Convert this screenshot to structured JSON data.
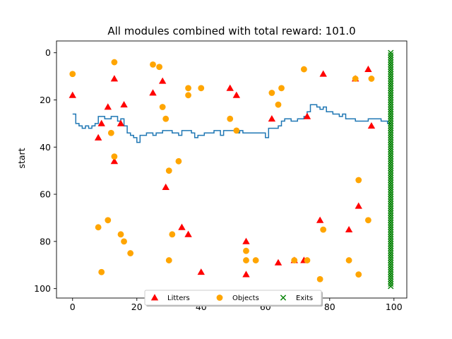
{
  "chart_data": {
    "type": "scatter",
    "title": "All modules combined with total reward: 101.0",
    "xlabel": "",
    "ylabel": "start",
    "xlim": [
      -5,
      104
    ],
    "ylim": [
      104,
      -5
    ],
    "y_inverted": true,
    "xticks": [
      0,
      20,
      40,
      60,
      80,
      100
    ],
    "yticks": [
      0,
      20,
      40,
      60,
      80,
      100
    ],
    "grid": false,
    "legend_position": "bottom-center",
    "series": [
      {
        "name": "Litters",
        "marker": "triangle",
        "color": "#ff0000",
        "points": [
          [
            0,
            18
          ],
          [
            8,
            36
          ],
          [
            9,
            30
          ],
          [
            11,
            23
          ],
          [
            13,
            11
          ],
          [
            13,
            46
          ],
          [
            15,
            30
          ],
          [
            16,
            22
          ],
          [
            25,
            17
          ],
          [
            28,
            12
          ],
          [
            29,
            57
          ],
          [
            34,
            74
          ],
          [
            36,
            77
          ],
          [
            40,
            93
          ],
          [
            49,
            15
          ],
          [
            51,
            18
          ],
          [
            54,
            80
          ],
          [
            54,
            94
          ],
          [
            62,
            28
          ],
          [
            64,
            89
          ],
          [
            69,
            88
          ],
          [
            72,
            88
          ],
          [
            73,
            27
          ],
          [
            77,
            71
          ],
          [
            78,
            9
          ],
          [
            86,
            75
          ],
          [
            88,
            11
          ],
          [
            89,
            65
          ],
          [
            92,
            7
          ],
          [
            93,
            31
          ]
        ]
      },
      {
        "name": "Objects",
        "marker": "circle",
        "color": "#ffa500",
        "points": [
          [
            0,
            9
          ],
          [
            8,
            74
          ],
          [
            9,
            93
          ],
          [
            11,
            71
          ],
          [
            12,
            34
          ],
          [
            13,
            4
          ],
          [
            13,
            44
          ],
          [
            15,
            77
          ],
          [
            16,
            80
          ],
          [
            18,
            85
          ],
          [
            25,
            5
          ],
          [
            27,
            6
          ],
          [
            28,
            23
          ],
          [
            29,
            28
          ],
          [
            30,
            50
          ],
          [
            30,
            88
          ],
          [
            31,
            77
          ],
          [
            33,
            46
          ],
          [
            36,
            15
          ],
          [
            36,
            18
          ],
          [
            40,
            15
          ],
          [
            49,
            28
          ],
          [
            51,
            33
          ],
          [
            54,
            84
          ],
          [
            54,
            88
          ],
          [
            57,
            88
          ],
          [
            62,
            17
          ],
          [
            64,
            22
          ],
          [
            65,
            15
          ],
          [
            69,
            88
          ],
          [
            72,
            7
          ],
          [
            73,
            88
          ],
          [
            77,
            96
          ],
          [
            78,
            75
          ],
          [
            86,
            88
          ],
          [
            88,
            11
          ],
          [
            89,
            54
          ],
          [
            89,
            94
          ],
          [
            92,
            71
          ],
          [
            93,
            11
          ]
        ]
      },
      {
        "name": "Exits",
        "marker": "x",
        "color": "#008000",
        "points": [
          [
            99,
            0
          ],
          [
            99,
            1
          ],
          [
            99,
            2
          ],
          [
            99,
            3
          ],
          [
            99,
            4
          ],
          [
            99,
            5
          ],
          [
            99,
            6
          ],
          [
            99,
            7
          ],
          [
            99,
            8
          ],
          [
            99,
            9
          ],
          [
            99,
            10
          ],
          [
            99,
            11
          ],
          [
            99,
            12
          ],
          [
            99,
            13
          ],
          [
            99,
            14
          ],
          [
            99,
            15
          ],
          [
            99,
            16
          ],
          [
            99,
            17
          ],
          [
            99,
            18
          ],
          [
            99,
            19
          ],
          [
            99,
            20
          ],
          [
            99,
            21
          ],
          [
            99,
            22
          ],
          [
            99,
            23
          ],
          [
            99,
            24
          ],
          [
            99,
            25
          ],
          [
            99,
            26
          ],
          [
            99,
            27
          ],
          [
            99,
            28
          ],
          [
            99,
            29
          ],
          [
            99,
            30
          ],
          [
            99,
            31
          ],
          [
            99,
            32
          ],
          [
            99,
            33
          ],
          [
            99,
            34
          ],
          [
            99,
            35
          ],
          [
            99,
            36
          ],
          [
            99,
            37
          ],
          [
            99,
            38
          ],
          [
            99,
            39
          ],
          [
            99,
            40
          ],
          [
            99,
            41
          ],
          [
            99,
            42
          ],
          [
            99,
            43
          ],
          [
            99,
            44
          ],
          [
            99,
            45
          ],
          [
            99,
            46
          ],
          [
            99,
            47
          ],
          [
            99,
            48
          ],
          [
            99,
            49
          ],
          [
            99,
            50
          ],
          [
            99,
            51
          ],
          [
            99,
            52
          ],
          [
            99,
            53
          ],
          [
            99,
            54
          ],
          [
            99,
            55
          ],
          [
            99,
            56
          ],
          [
            99,
            57
          ],
          [
            99,
            58
          ],
          [
            99,
            59
          ],
          [
            99,
            60
          ],
          [
            99,
            61
          ],
          [
            99,
            62
          ],
          [
            99,
            63
          ],
          [
            99,
            64
          ],
          [
            99,
            65
          ],
          [
            99,
            66
          ],
          [
            99,
            67
          ],
          [
            99,
            68
          ],
          [
            99,
            69
          ],
          [
            99,
            70
          ],
          [
            99,
            71
          ],
          [
            99,
            72
          ],
          [
            99,
            73
          ],
          [
            99,
            74
          ],
          [
            99,
            75
          ],
          [
            99,
            76
          ],
          [
            99,
            77
          ],
          [
            99,
            78
          ],
          [
            99,
            79
          ],
          [
            99,
            80
          ],
          [
            99,
            81
          ],
          [
            99,
            82
          ],
          [
            99,
            83
          ],
          [
            99,
            84
          ],
          [
            99,
            85
          ],
          [
            99,
            86
          ],
          [
            99,
            87
          ],
          [
            99,
            88
          ],
          [
            99,
            89
          ],
          [
            99,
            90
          ],
          [
            99,
            91
          ],
          [
            99,
            92
          ],
          [
            99,
            93
          ],
          [
            99,
            94
          ],
          [
            99,
            95
          ],
          [
            99,
            96
          ],
          [
            99,
            97
          ],
          [
            99,
            98
          ],
          [
            99,
            99
          ]
        ]
      }
    ],
    "path": {
      "color": "#1f77b4",
      "style": "step",
      "points": [
        [
          0,
          26
        ],
        [
          1,
          26
        ],
        [
          1,
          30
        ],
        [
          2,
          30
        ],
        [
          2,
          31
        ],
        [
          3,
          31
        ],
        [
          3,
          32
        ],
        [
          4,
          32
        ],
        [
          4,
          31
        ],
        [
          5,
          31
        ],
        [
          5,
          32
        ],
        [
          6,
          32
        ],
        [
          6,
          31
        ],
        [
          7,
          31
        ],
        [
          7,
          30
        ],
        [
          8,
          30
        ],
        [
          8,
          27
        ],
        [
          10,
          27
        ],
        [
          10,
          28
        ],
        [
          12,
          28
        ],
        [
          12,
          27
        ],
        [
          14,
          27
        ],
        [
          14,
          29
        ],
        [
          15,
          29
        ],
        [
          15,
          28
        ],
        [
          16,
          28
        ],
        [
          16,
          31
        ],
        [
          17,
          31
        ],
        [
          17,
          34
        ],
        [
          18,
          34
        ],
        [
          18,
          35
        ],
        [
          19,
          35
        ],
        [
          19,
          36
        ],
        [
          20,
          36
        ],
        [
          20,
          38
        ],
        [
          21,
          38
        ],
        [
          21,
          35
        ],
        [
          23,
          35
        ],
        [
          23,
          34
        ],
        [
          25,
          34
        ],
        [
          25,
          35
        ],
        [
          26,
          35
        ],
        [
          26,
          34
        ],
        [
          28,
          34
        ],
        [
          28,
          33
        ],
        [
          31,
          33
        ],
        [
          31,
          34
        ],
        [
          33,
          34
        ],
        [
          33,
          35
        ],
        [
          34,
          35
        ],
        [
          34,
          33
        ],
        [
          37,
          33
        ],
        [
          37,
          34
        ],
        [
          38,
          34
        ],
        [
          38,
          36
        ],
        [
          39,
          36
        ],
        [
          39,
          35
        ],
        [
          41,
          35
        ],
        [
          41,
          34
        ],
        [
          44,
          34
        ],
        [
          44,
          33
        ],
        [
          46,
          33
        ],
        [
          46,
          35
        ],
        [
          47,
          35
        ],
        [
          47,
          33
        ],
        [
          51,
          33
        ],
        [
          51,
          34
        ],
        [
          52,
          34
        ],
        [
          52,
          33
        ],
        [
          53,
          33
        ],
        [
          53,
          34
        ],
        [
          60,
          34
        ],
        [
          60,
          36
        ],
        [
          61,
          36
        ],
        [
          61,
          32
        ],
        [
          64,
          32
        ],
        [
          64,
          31
        ],
        [
          65,
          31
        ],
        [
          65,
          29
        ],
        [
          66,
          29
        ],
        [
          66,
          28
        ],
        [
          68,
          28
        ],
        [
          68,
          29
        ],
        [
          70,
          29
        ],
        [
          70,
          28
        ],
        [
          72,
          28
        ],
        [
          72,
          27
        ],
        [
          73,
          27
        ],
        [
          73,
          25
        ],
        [
          74,
          25
        ],
        [
          74,
          22
        ],
        [
          76,
          22
        ],
        [
          76,
          23
        ],
        [
          77,
          23
        ],
        [
          77,
          24
        ],
        [
          78,
          24
        ],
        [
          78,
          23
        ],
        [
          79,
          23
        ],
        [
          79,
          25
        ],
        [
          81,
          25
        ],
        [
          81,
          26
        ],
        [
          83,
          26
        ],
        [
          83,
          27
        ],
        [
          84,
          27
        ],
        [
          84,
          26
        ],
        [
          85,
          26
        ],
        [
          85,
          28
        ],
        [
          88,
          28
        ],
        [
          88,
          29
        ],
        [
          92,
          29
        ],
        [
          92,
          28
        ],
        [
          96,
          28
        ],
        [
          96,
          29
        ],
        [
          98,
          29
        ],
        [
          98,
          30
        ],
        [
          99,
          30
        ]
      ]
    }
  }
}
